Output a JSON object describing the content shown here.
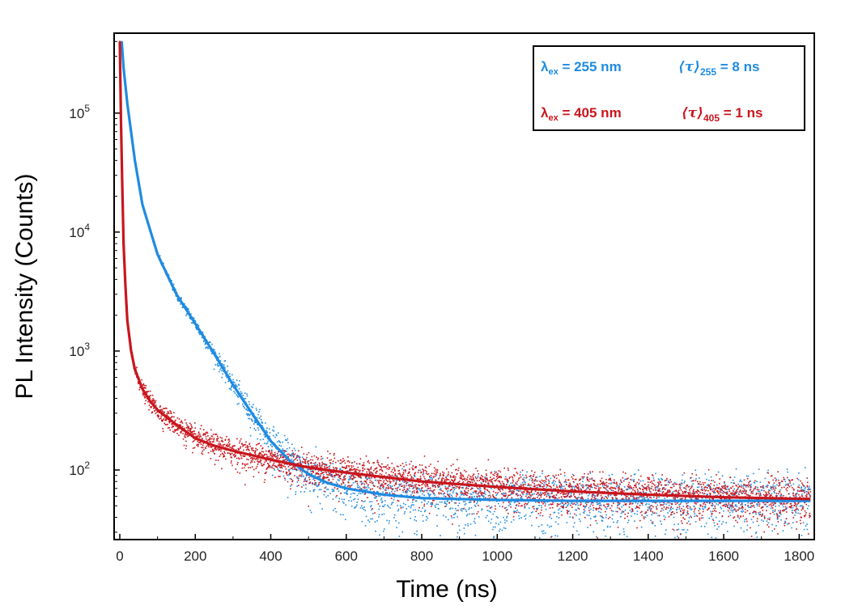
{
  "chart_data": {
    "type": "scatter",
    "title": "",
    "xlabel": "Time (ns)",
    "ylabel": "PL Intensity (Counts)",
    "xlim": [
      -15,
      1840
    ],
    "ylim": [
      26,
      470000
    ],
    "yscale": "log",
    "xticks": [
      0,
      200,
      400,
      600,
      800,
      1000,
      1200,
      1400,
      1600,
      1800
    ],
    "xtick_labels": [
      "0",
      "200",
      "400",
      "600",
      "800",
      "1000",
      "1200",
      "1400",
      "1600",
      "1800"
    ],
    "yticks": [
      {
        "value": 100,
        "base": "10",
        "exp": "2"
      },
      {
        "value": 1000,
        "base": "10",
        "exp": "3"
      },
      {
        "value": 10000,
        "base": "10",
        "exp": "4"
      },
      {
        "value": 100000,
        "base": "10",
        "exp": "5"
      }
    ],
    "grid": false,
    "legend_position": "top-right",
    "series": [
      {
        "name": "λex = 255 nm",
        "color": "#1f8be0",
        "annotation": "⟨τ⟩255 = 8 ns",
        "annotation_prefix": "⟨τ⟩",
        "annotation_sub": "255",
        "annotation_suffix": " = 8 ns",
        "label_main": "λ",
        "label_sub": "ex",
        "label_rest": " = 255 nm",
        "fit": [
          [
            5,
            400000
          ],
          [
            10,
            240000
          ],
          [
            20,
            120000
          ],
          [
            40,
            40000
          ],
          [
            60,
            17000
          ],
          [
            100,
            6500
          ],
          [
            150,
            3000
          ],
          [
            200,
            1700
          ],
          [
            250,
            950
          ],
          [
            300,
            520
          ],
          [
            350,
            300
          ],
          [
            400,
            175
          ],
          [
            450,
            120
          ],
          [
            500,
            92
          ],
          [
            550,
            78
          ],
          [
            600,
            70
          ],
          [
            700,
            62
          ],
          [
            800,
            58
          ],
          [
            1000,
            56
          ],
          [
            1200,
            55
          ],
          [
            1400,
            55
          ],
          [
            1600,
            55
          ],
          [
            1830,
            55
          ]
        ]
      },
      {
        "name": "λex = 405 nm",
        "color": "#c8161d",
        "annotation": "⟨τ⟩405 = 1 ns",
        "annotation_prefix": "⟨τ⟩",
        "annotation_sub": "405",
        "annotation_suffix": " = 1 ns",
        "label_main": "λ",
        "label_sub": "ex",
        "label_rest": " = 405 nm",
        "fit": [
          [
            0,
            400000
          ],
          [
            3,
            90000
          ],
          [
            6,
            30000
          ],
          [
            10,
            8000
          ],
          [
            15,
            3500
          ],
          [
            20,
            1800
          ],
          [
            30,
            1000
          ],
          [
            40,
            700
          ],
          [
            60,
            480
          ],
          [
            80,
            380
          ],
          [
            100,
            320
          ],
          [
            150,
            240
          ],
          [
            200,
            185
          ],
          [
            250,
            160
          ],
          [
            300,
            145
          ],
          [
            400,
            122
          ],
          [
            500,
            105
          ],
          [
            600,
            95
          ],
          [
            800,
            80
          ],
          [
            1000,
            72
          ],
          [
            1200,
            66
          ],
          [
            1400,
            62
          ],
          [
            1600,
            59
          ],
          [
            1830,
            57
          ]
        ]
      }
    ]
  }
}
